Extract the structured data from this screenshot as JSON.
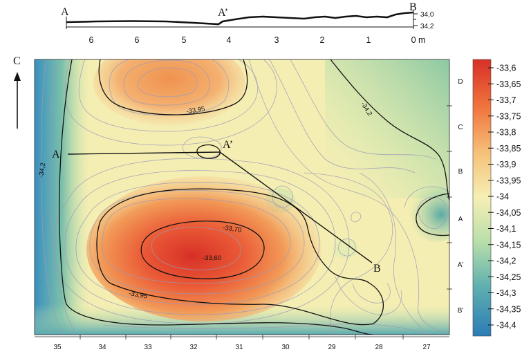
{
  "colors": {
    "scale_high": "#d73027",
    "scale_mid_high": "#f1a24a",
    "scale_mid": "#f6efb4",
    "scale_mid_low": "#8ec9a4",
    "scale_low": "#2c7bb6",
    "contour_major": "#111111",
    "contour_minor": "#9a9ab8"
  },
  "profile": {
    "start_label": "A",
    "mid_label": "A’",
    "end_label": "B",
    "distance_ticks": [
      "6",
      "6",
      "5",
      "4",
      "3",
      "2",
      "1",
      "0 m"
    ],
    "elevation_ticks": [
      "34,0",
      "34,2"
    ]
  },
  "map": {
    "north_label": "C",
    "bottom_grid_labels": [
      "35",
      "34",
      "33",
      "32",
      "31",
      "30",
      "29",
      "28",
      "27"
    ],
    "right_grid_labels": [
      "D",
      "C",
      "B",
      "A",
      "A'",
      "B'"
    ],
    "section_labels": {
      "a": "A",
      "a_prime": "A’",
      "b": "B"
    },
    "contour_labels": {
      "upper_ring": "-33,95",
      "upper_right": "-34,2",
      "left_edge": "-34,2",
      "inner_ring": "-33,70",
      "peak": "-33,60",
      "lower_ring": "-33,95"
    }
  },
  "colorbar": {
    "min": -34.4,
    "max": -33.6,
    "step": 0.05,
    "labels": [
      "-33,6",
      "-33,65",
      "-33,7",
      "-33,75",
      "-33,8",
      "-33,85",
      "-33,9",
      "-33,95",
      "-34",
      "-34,05",
      "-34,1",
      "-34,15",
      "-34,2",
      "-34,25",
      "-34,3",
      "-34,35",
      "-34,4"
    ]
  }
}
